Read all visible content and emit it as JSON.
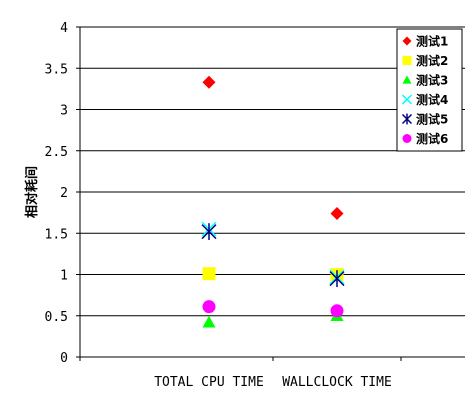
{
  "chart_data": {
    "type": "scatter",
    "title": "",
    "xlabel": "",
    "ylabel": "相对耗间",
    "categories": [
      "TOTAL CPU TIME",
      "WALLCLOCK TIME"
    ],
    "ylim": [
      0,
      4
    ],
    "yticks": [
      "0",
      "0.5",
      "1",
      "1.5",
      "2",
      "2.5",
      "3",
      "3.5",
      "4"
    ],
    "grid": true,
    "legend": "top-right",
    "series": [
      {
        "name": "测试1",
        "marker": "diamond",
        "color": "#FF0000",
        "values": [
          3.33,
          1.74
        ]
      },
      {
        "name": "测试2",
        "marker": "square",
        "color": "#FFFF00",
        "values": [
          1.01,
          1.0
        ]
      },
      {
        "name": "测试3",
        "marker": "triangle",
        "color": "#00FF00",
        "values": [
          0.42,
          0.5
        ]
      },
      {
        "name": "测试4",
        "marker": "x",
        "color": "#00FFFF",
        "values": [
          1.55,
          0.97
        ]
      },
      {
        "name": "测试5",
        "marker": "asterisk",
        "color": "#000080",
        "values": [
          1.52,
          0.95
        ]
      },
      {
        "name": "测试6",
        "marker": "circle",
        "color": "#FF00FF",
        "values": [
          0.61,
          0.56
        ]
      }
    ]
  }
}
